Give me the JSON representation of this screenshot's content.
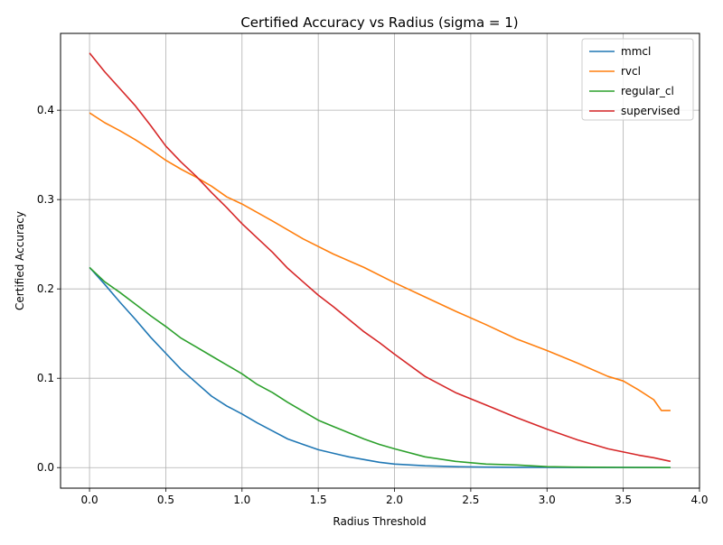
{
  "chart_data": {
    "type": "line",
    "title": "Certified Accuracy vs Radius (sigma = 1)",
    "xlabel": "Radius Threshold",
    "ylabel": "Certified Accuracy",
    "xlim": [
      -0.19,
      4.0
    ],
    "ylim": [
      -0.023,
      0.486
    ],
    "xticks": [
      0.0,
      0.5,
      1.0,
      1.5,
      2.0,
      2.5,
      3.0,
      3.5,
      4.0
    ],
    "xtick_labels": [
      "0.0",
      "0.5",
      "1.0",
      "1.5",
      "2.0",
      "2.5",
      "3.0",
      "3.5",
      "4.0"
    ],
    "yticks": [
      0.0,
      0.1,
      0.2,
      0.3,
      0.4
    ],
    "ytick_labels": [
      "0.0",
      "0.1",
      "0.2",
      "0.3",
      "0.4"
    ],
    "grid": true,
    "legend_position": "top-right",
    "series": [
      {
        "name": "mmcl",
        "color": "#1f77b4",
        "x": [
          0.0,
          0.1,
          0.2,
          0.3,
          0.4,
          0.5,
          0.6,
          0.7,
          0.8,
          0.9,
          1.0,
          1.1,
          1.2,
          1.3,
          1.4,
          1.5,
          1.6,
          1.7,
          1.8,
          1.9,
          2.0,
          2.2,
          2.4,
          2.6,
          2.8,
          3.0,
          3.5,
          3.81
        ],
        "y": [
          0.224,
          0.205,
          0.185,
          0.166,
          0.146,
          0.128,
          0.11,
          0.095,
          0.08,
          0.069,
          0.06,
          0.05,
          0.041,
          0.032,
          0.026,
          0.02,
          0.016,
          0.012,
          0.009,
          0.006,
          0.004,
          0.002,
          0.001,
          0.0005,
          0.0003,
          0.0002,
          0.0001,
          0.0
        ]
      },
      {
        "name": "rvcl",
        "color": "#ff7f0e",
        "x": [
          0.0,
          0.1,
          0.2,
          0.3,
          0.4,
          0.5,
          0.6,
          0.7,
          0.8,
          0.9,
          1.0,
          1.2,
          1.4,
          1.6,
          1.8,
          2.0,
          2.2,
          2.4,
          2.6,
          2.8,
          3.0,
          3.2,
          3.4,
          3.5,
          3.6,
          3.7,
          3.75,
          3.81
        ],
        "y": [
          0.397,
          0.386,
          0.377,
          0.367,
          0.356,
          0.344,
          0.334,
          0.325,
          0.315,
          0.303,
          0.295,
          0.276,
          0.256,
          0.239,
          0.224,
          0.207,
          0.191,
          0.175,
          0.16,
          0.144,
          0.131,
          0.117,
          0.102,
          0.097,
          0.087,
          0.076,
          0.064,
          0.064
        ]
      },
      {
        "name": "regular_cl",
        "color": "#2ca02c",
        "x": [
          0.0,
          0.1,
          0.2,
          0.3,
          0.4,
          0.5,
          0.6,
          0.7,
          0.8,
          0.9,
          1.0,
          1.1,
          1.2,
          1.3,
          1.4,
          1.5,
          1.6,
          1.7,
          1.8,
          1.9,
          2.0,
          2.2,
          2.4,
          2.6,
          2.8,
          3.0,
          3.2,
          3.5,
          3.81
        ],
        "y": [
          0.224,
          0.208,
          0.196,
          0.183,
          0.17,
          0.158,
          0.145,
          0.135,
          0.125,
          0.115,
          0.105,
          0.093,
          0.084,
          0.073,
          0.063,
          0.053,
          0.046,
          0.039,
          0.032,
          0.026,
          0.021,
          0.012,
          0.007,
          0.004,
          0.003,
          0.001,
          0.0005,
          0.0002,
          0.0
        ]
      },
      {
        "name": "supervised",
        "color": "#d62728",
        "x": [
          0.0,
          0.1,
          0.2,
          0.3,
          0.4,
          0.5,
          0.6,
          0.7,
          0.8,
          0.9,
          1.0,
          1.1,
          1.2,
          1.3,
          1.4,
          1.5,
          1.6,
          1.7,
          1.8,
          1.9,
          2.0,
          2.2,
          2.4,
          2.6,
          2.8,
          3.0,
          3.2,
          3.4,
          3.6,
          3.7,
          3.81
        ],
        "y": [
          0.464,
          0.443,
          0.424,
          0.405,
          0.383,
          0.36,
          0.342,
          0.326,
          0.308,
          0.291,
          0.273,
          0.257,
          0.241,
          0.223,
          0.208,
          0.193,
          0.18,
          0.166,
          0.152,
          0.14,
          0.127,
          0.102,
          0.084,
          0.07,
          0.056,
          0.043,
          0.031,
          0.021,
          0.014,
          0.011,
          0.007
        ]
      }
    ]
  }
}
